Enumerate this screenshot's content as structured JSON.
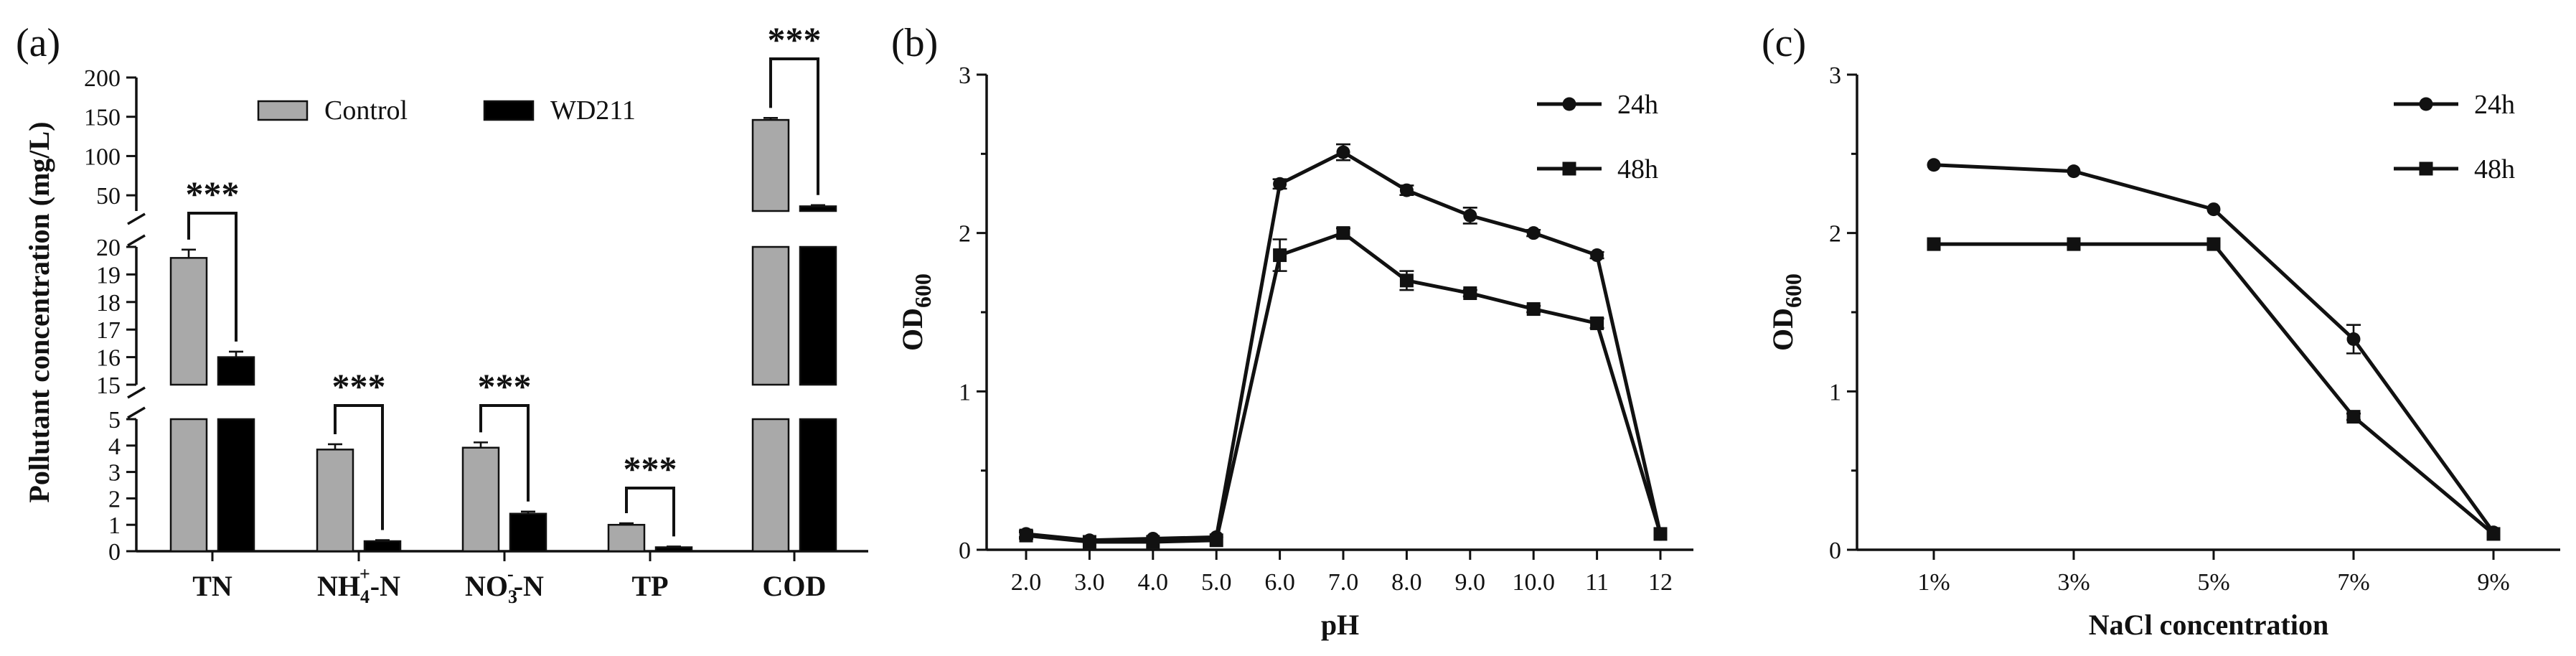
{
  "colors": {
    "control": "#a9a9a9",
    "wd211": "#000000",
    "ink": "#111111"
  },
  "chart_data": [
    {
      "panel_label": "(a)",
      "type": "bar",
      "ylabel": "Pollutant concentration (mg/L)",
      "categories": [
        "TN",
        "NH4+-N",
        "NO3--N",
        "TP",
        "COD"
      ],
      "category_labels": [
        {
          "base": "TN",
          "sup": "",
          "sub": "",
          "tail": ""
        },
        {
          "base": "NH",
          "sub": "4",
          "sup": "+",
          "tail": "-N"
        },
        {
          "base": "NO",
          "sub": "3",
          "sup": "-",
          "tail": "-N"
        },
        {
          "base": "TP",
          "sup": "",
          "sub": "",
          "tail": ""
        },
        {
          "base": "COD",
          "sup": "",
          "sub": "",
          "tail": ""
        }
      ],
      "series": [
        {
          "name": "Control",
          "values": [
            19.6,
            3.85,
            3.92,
            1.0,
            146
          ],
          "errors": [
            0.3,
            0.2,
            0.2,
            0.06,
            2.5
          ]
        },
        {
          "name": "WD211",
          "values": [
            16.0,
            0.38,
            1.42,
            0.15,
            36
          ],
          "errors": [
            0.2,
            0.04,
            0.08,
            0.03,
            1.5
          ]
        }
      ],
      "significance": [
        "***",
        "***",
        "***",
        "***",
        "***"
      ],
      "y_segments": [
        {
          "range": [
            0,
            5
          ],
          "ticks": [
            "0",
            "1",
            "2",
            "3",
            "4",
            "5"
          ]
        },
        {
          "range": [
            15,
            20
          ],
          "ticks": [
            "15",
            "16",
            "17",
            "18",
            "19",
            "20"
          ]
        },
        {
          "range": [
            30,
            200
          ],
          "ticks": [
            "50",
            "100",
            "150",
            "200"
          ]
        }
      ],
      "legend_position": "top"
    },
    {
      "panel_label": "(b)",
      "type": "line",
      "xlabel": "pH",
      "ylabel": {
        "base": "OD",
        "sub": "600"
      },
      "x": [
        "2.0",
        "3.0",
        "4.0",
        "5.0",
        "6.0",
        "7.0",
        "8.0",
        "9.0",
        "10.0",
        "11",
        "12"
      ],
      "ylim": [
        0,
        3
      ],
      "yticks": [
        "0",
        "1",
        "2",
        "3"
      ],
      "series": [
        {
          "name": "24h",
          "marker": "circle",
          "values": [
            0.1,
            0.06,
            0.07,
            0.08,
            2.31,
            2.51,
            2.27,
            2.11,
            2.0,
            1.86,
            0.1
          ],
          "errors": [
            0.02,
            0.01,
            0.01,
            0.01,
            0.03,
            0.05,
            0.03,
            0.05,
            0.02,
            0.02,
            0.01
          ]
        },
        {
          "name": "48h",
          "marker": "square",
          "values": [
            0.09,
            0.05,
            0.05,
            0.06,
            1.86,
            2.0,
            1.7,
            1.62,
            1.52,
            1.43,
            0.1
          ],
          "errors": [
            0.02,
            0.01,
            0.01,
            0.01,
            0.1,
            0.03,
            0.06,
            0.02,
            0.02,
            0.03,
            0.01
          ]
        }
      ],
      "legend_position": "top-right"
    },
    {
      "panel_label": "(c)",
      "type": "line",
      "xlabel": "NaCl concentration",
      "ylabel": {
        "base": "OD",
        "sub": "600"
      },
      "x": [
        "1%",
        "3%",
        "5%",
        "7%",
        "9%"
      ],
      "ylim": [
        0,
        3
      ],
      "yticks": [
        "0",
        "1",
        "2",
        "3"
      ],
      "series": [
        {
          "name": "24h",
          "marker": "circle",
          "values": [
            2.43,
            2.39,
            2.15,
            1.33,
            0.11
          ],
          "errors": [
            0.01,
            0.01,
            0.01,
            0.09,
            0.01
          ]
        },
        {
          "name": "48h",
          "marker": "square",
          "values": [
            1.93,
            1.93,
            1.93,
            0.84,
            0.1
          ],
          "errors": [
            0.01,
            0.01,
            0.01,
            0.02,
            0.01
          ]
        }
      ],
      "legend_position": "top-right"
    }
  ]
}
